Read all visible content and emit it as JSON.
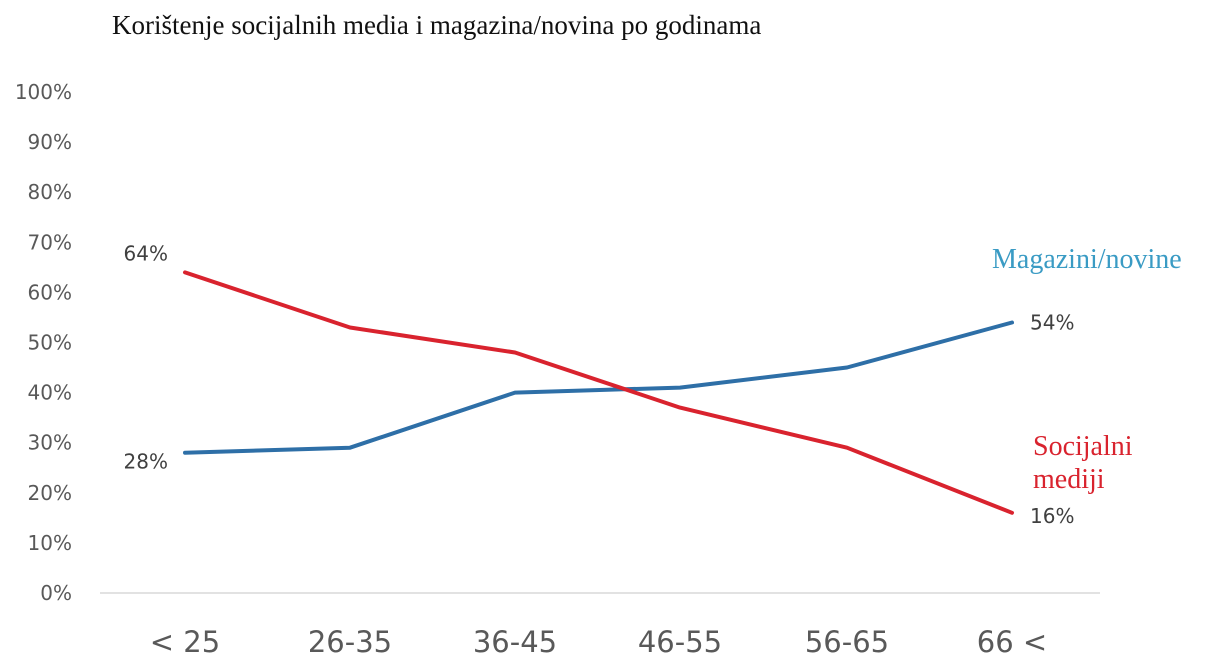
{
  "chart_data": {
    "type": "line",
    "title": "Korištenje socijalnih media i magazina/novina po godinama",
    "categories": [
      "< 25",
      "26-35",
      "36-45",
      "46-55",
      "56-65",
      "66 <"
    ],
    "y_ticks": [
      "0%",
      "10%",
      "20%",
      "30%",
      "40%",
      "50%",
      "60%",
      "70%",
      "80%",
      "90%",
      "100%"
    ],
    "ylim": [
      0,
      100
    ],
    "grid": false,
    "series": [
      {
        "name": "Magazini/novine",
        "color": "#2e6fa7",
        "label_color": "#3a9bc4",
        "values": [
          28,
          29,
          40,
          41,
          45,
          54
        ],
        "start_label": "28%",
        "end_label": "54%"
      },
      {
        "name": "Socijalni mediji",
        "name_lines": [
          "Socijalni",
          "mediji"
        ],
        "color": "#d9232e",
        "label_color": "#d9232e",
        "values": [
          64,
          53,
          48,
          37,
          29,
          16
        ],
        "start_label": "64%",
        "end_label": "16%"
      }
    ]
  }
}
